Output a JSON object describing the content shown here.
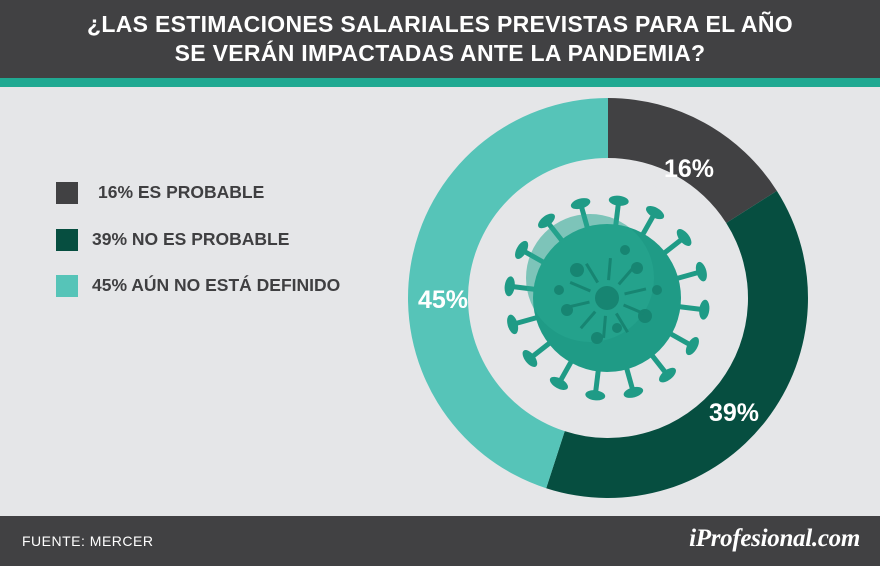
{
  "header": {
    "title_line1": "¿LAS ESTIMACIONES SALARIALES PREVISTAS PARA EL AÑO",
    "title_line2": "SE VERÁN IMPACTADAS ANTE LA PANDEMIA?"
  },
  "legend": [
    {
      "label": "16% ES PROBABLE",
      "color": "#414143"
    },
    {
      "label": "39% NO ES PROBABLE",
      "color": "#064e40"
    },
    {
      "label": "45% AÚN NO ESTÁ DEFINIDO",
      "color": "#56c4b8"
    }
  ],
  "chart_data": {
    "type": "pie",
    "variant": "donut",
    "title": "¿LAS ESTIMACIONES SALARIALES PREVISTAS PARA EL AÑO SE VERÁN IMPACTADAS ANTE LA PANDEMIA?",
    "categories": [
      "ES PROBABLE",
      "NO ES PROBABLE",
      "AÚN NO ESTÁ DEFINIDO"
    ],
    "values": [
      16,
      39,
      45
    ],
    "data_labels": [
      "16%",
      "39%",
      "45%"
    ],
    "colors": [
      "#414143",
      "#064e40",
      "#56c4b8"
    ],
    "start_angle": "12 o'clock",
    "direction": "clockwise",
    "legend_position": "left",
    "center_graphic": "virus illustration"
  },
  "footer": {
    "source": "FUENTE:  MERCER",
    "brand": "iProfesional.com"
  },
  "colors": {
    "background": "#e5e6e8",
    "header": "#414143",
    "accent": "#20a992"
  }
}
